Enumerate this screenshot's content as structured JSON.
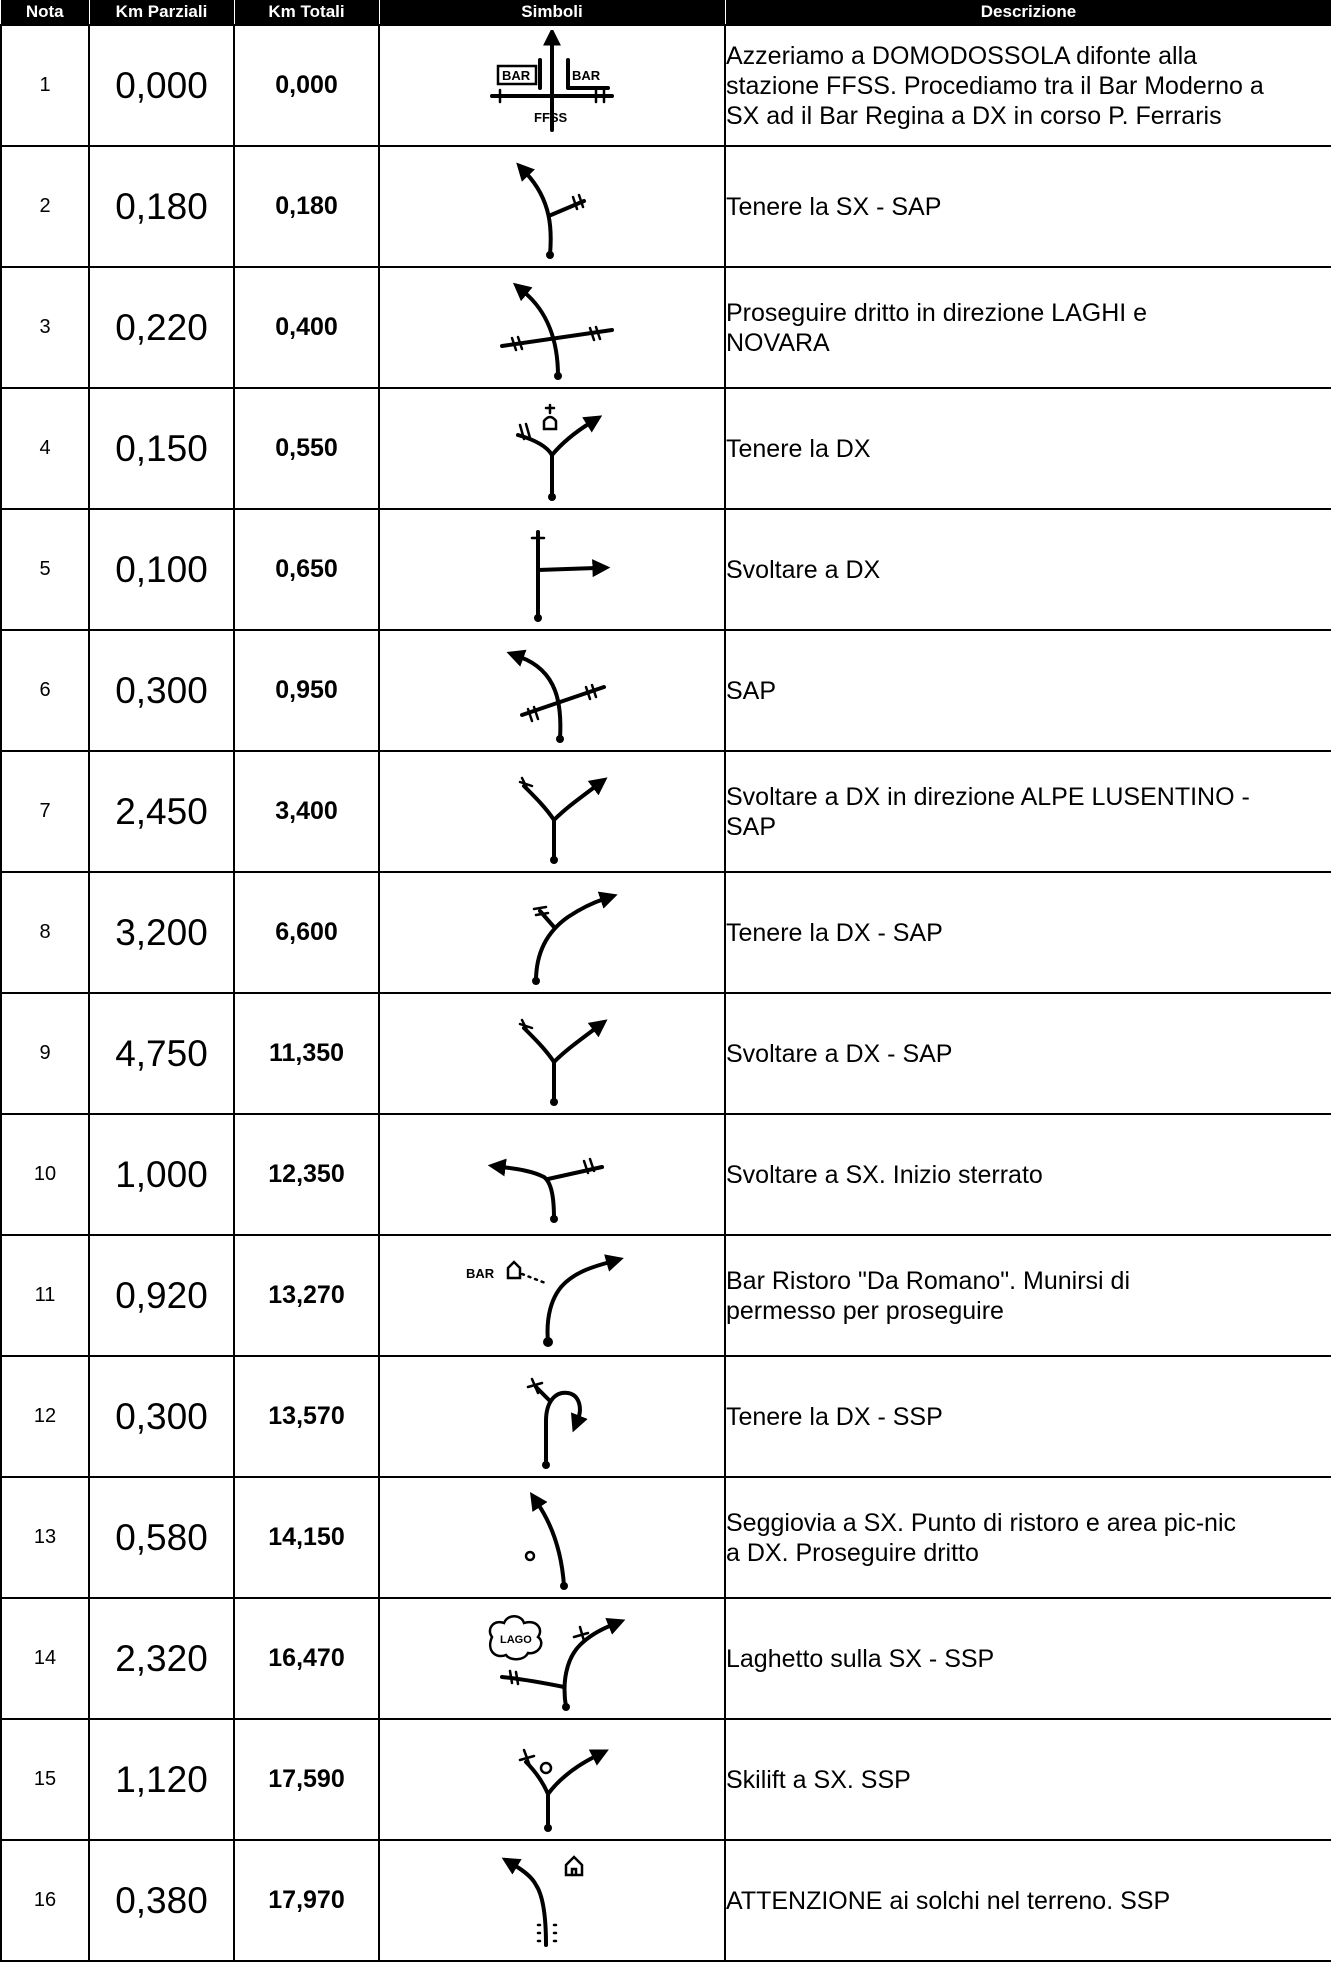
{
  "headers": {
    "nota": "Nota",
    "km_parziali": "Km Parziali",
    "km_totali": "Km Totali",
    "simboli": "Simboli",
    "descrizione": "Descrizione"
  },
  "rows": [
    {
      "nota": "1",
      "km_parziali": "0,000",
      "km_totali": "0,000",
      "icon": "crossroads-bar-station-icon",
      "descrizione": [
        "Azzeriamo a DOMODOSSOLA difonte alla",
        "stazione FFSS. Procediamo tra il Bar Moderno a",
        "SX ad il Bar Regina a DX in corso P. Ferraris"
      ],
      "labels": [
        "BAR",
        "BAR",
        "FFSS"
      ]
    },
    {
      "nota": "2",
      "km_parziali": "0,180",
      "km_totali": "0,180",
      "icon": "keep-left-icon",
      "descrizione": [
        "Tenere la SX - SAP"
      ]
    },
    {
      "nota": "3",
      "km_parziali": "0,220",
      "km_totali": "0,400",
      "icon": "straight-crossing-icon",
      "descrizione": [
        "Proseguire dritto in direzione LAGHI e",
        "NOVARA"
      ]
    },
    {
      "nota": "4",
      "km_parziali": "0,150",
      "km_totali": "0,550",
      "icon": "fork-right-chapel-icon",
      "descrizione": [
        "Tenere la DX"
      ]
    },
    {
      "nota": "5",
      "km_parziali": "0,100",
      "km_totali": "0,650",
      "icon": "turn-right-icon",
      "descrizione": [
        "Svoltare a DX"
      ]
    },
    {
      "nota": "6",
      "km_parziali": "0,300",
      "km_totali": "0,950",
      "icon": "crossing-left-icon",
      "descrizione": [
        "SAP"
      ]
    },
    {
      "nota": "7",
      "km_parziali": "2,450",
      "km_totali": "3,400",
      "icon": "fork-right-icon",
      "descrizione": [
        "Svoltare a DX in direzione ALPE LUSENTINO -",
        "SAP"
      ]
    },
    {
      "nota": "8",
      "km_parziali": "3,200",
      "km_totali": "6,600",
      "icon": "bear-right-icon",
      "descrizione": [
        "Tenere la DX - SAP"
      ]
    },
    {
      "nota": "9",
      "km_parziali": "4,750",
      "km_totali": "11,350",
      "icon": "fork-right-icon",
      "descrizione": [
        "Svoltare a DX - SAP"
      ]
    },
    {
      "nota": "10",
      "km_parziali": "1,000",
      "km_totali": "12,350",
      "icon": "turn-left-icon",
      "descrizione": [
        "Svoltare a SX. Inizio sterrato"
      ]
    },
    {
      "nota": "11",
      "km_parziali": "0,920",
      "km_totali": "13,270",
      "icon": "bar-bear-right-icon",
      "descrizione": [
        "Bar Ristoro \"Da Romano\". Munirsi di",
        "permesso per proseguire"
      ],
      "labels": [
        "BAR"
      ]
    },
    {
      "nota": "12",
      "km_parziali": "0,300",
      "km_totali": "13,570",
      "icon": "curve-right-icon",
      "descrizione": [
        "Tenere la DX - SSP"
      ]
    },
    {
      "nota": "13",
      "km_parziali": "0,580",
      "km_totali": "14,150",
      "icon": "chairlift-straight-icon",
      "descrizione": [
        "Seggiovia a SX. Punto di ristoro e area pic-nic",
        "a DX. Proseguire dritto"
      ]
    },
    {
      "nota": "14",
      "km_parziali": "2,320",
      "km_totali": "16,470",
      "icon": "lake-bear-right-icon",
      "descrizione": [
        "Laghetto sulla SX - SSP"
      ],
      "labels": [
        "LAGO"
      ]
    },
    {
      "nota": "15",
      "km_parziali": "1,120",
      "km_totali": "17,590",
      "icon": "skilift-fork-right-icon",
      "descrizione": [
        "Skilift a SX. SSP"
      ]
    },
    {
      "nota": "16",
      "km_parziali": "0,380",
      "km_totali": "17,970",
      "icon": "ruts-left-icon",
      "descrizione": [
        "ATTENZIONE ai solchi nel terreno. SSP"
      ]
    }
  ]
}
